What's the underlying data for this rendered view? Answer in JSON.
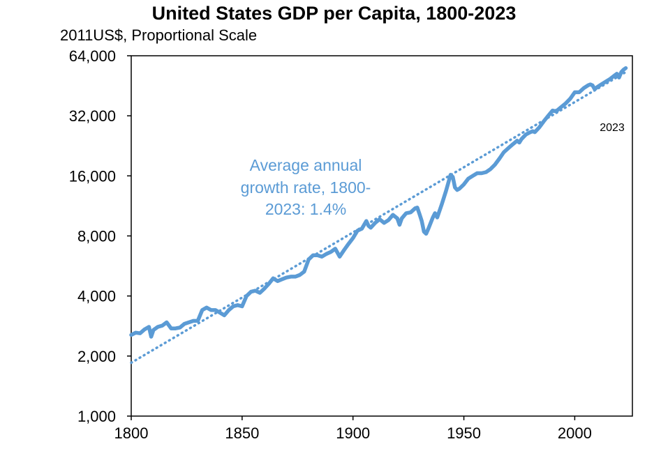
{
  "chart_data": {
    "type": "line",
    "title": "United States GDP per Capita, 1800-2023",
    "subtitle": "2011US$, Proportional Scale",
    "xlabel": "",
    "ylabel": "",
    "x_ticks": [
      "1800",
      "1850",
      "1900",
      "1950",
      "2000"
    ],
    "y_ticks": [
      "1,000",
      "2,000",
      "4,000",
      "8,000",
      "16,000",
      "32,000",
      "64,000"
    ],
    "xlim": [
      1800,
      2026
    ],
    "ylim": [
      1000,
      64000
    ],
    "y_scale": "log",
    "grid": false,
    "legend": "none",
    "color": "#5b9bd5",
    "annotation": [
      "Average annual",
      "growth rate, 1800-",
      "2023: 1.4%"
    ],
    "end_label": "2023",
    "series": [
      {
        "x": [
          1800,
          1802,
          1804,
          1806,
          1808,
          1809,
          1810,
          1812,
          1814,
          1816,
          1818,
          1820,
          1822,
          1824,
          1826,
          1828,
          1830,
          1832,
          1834,
          1836,
          1838,
          1840,
          1842,
          1844,
          1846,
          1848,
          1850,
          1852,
          1854,
          1856,
          1858,
          1860,
          1862,
          1864,
          1866,
          1868,
          1870,
          1872,
          1874,
          1876,
          1878,
          1880,
          1882,
          1884,
          1886,
          1888,
          1890,
          1892,
          1894,
          1896,
          1898,
          1900,
          1902,
          1904,
          1906,
          1907,
          1908,
          1910,
          1912,
          1914,
          1916,
          1918,
          1920,
          1921,
          1922,
          1924,
          1926,
          1928,
          1929,
          1930,
          1931,
          1932,
          1933,
          1934,
          1936,
          1937,
          1938,
          1940,
          1942,
          1944,
          1945,
          1946,
          1947,
          1948,
          1950,
          1952,
          1954,
          1956,
          1958,
          1960,
          1962,
          1964,
          1966,
          1968,
          1970,
          1972,
          1974,
          1975,
          1976,
          1978,
          1980,
          1981,
          1982,
          1984,
          1986,
          1988,
          1990,
          1991,
          1992,
          1994,
          1996,
          1998,
          2000,
          2002,
          2004,
          2006,
          2007,
          2008,
          2009,
          2010,
          2012,
          2014,
          2016,
          2018,
          2019,
          2020,
          2021,
          2022,
          2023
        ],
        "y": [
          2550,
          2620,
          2600,
          2720,
          2800,
          2500,
          2700,
          2800,
          2840,
          2950,
          2750,
          2750,
          2780,
          2900,
          2950,
          3000,
          3000,
          3400,
          3500,
          3400,
          3400,
          3300,
          3200,
          3400,
          3550,
          3600,
          3550,
          4000,
          4200,
          4250,
          4150,
          4350,
          4600,
          4900,
          4750,
          4850,
          4950,
          5000,
          5000,
          5100,
          5300,
          6100,
          6400,
          6400,
          6300,
          6500,
          6650,
          6900,
          6300,
          6800,
          7300,
          7800,
          8500,
          8700,
          9500,
          9000,
          8800,
          9300,
          9700,
          9300,
          9600,
          10200,
          9800,
          9100,
          9800,
          10400,
          10500,
          11000,
          11100,
          10300,
          9500,
          8400,
          8200,
          8700,
          9900,
          10400,
          9900,
          11500,
          13500,
          16200,
          15800,
          14000,
          13600,
          13800,
          14500,
          15500,
          16000,
          16500,
          16500,
          16700,
          17300,
          18200,
          19500,
          21000,
          22000,
          23000,
          24000,
          23500,
          24500,
          25800,
          26500,
          26800,
          26500,
          28000,
          30000,
          32000,
          34000,
          33800,
          34000,
          35500,
          37000,
          39000,
          42000,
          42000,
          44000,
          45500,
          46000,
          45500,
          43500,
          44500,
          46000,
          47500,
          49000,
          51000,
          52000,
          49800,
          53000,
          54500,
          55500
        ]
      }
    ],
    "trend": {
      "name": "",
      "x": [
        1800,
        2023
      ],
      "y": [
        1850,
        53000
      ]
    }
  }
}
